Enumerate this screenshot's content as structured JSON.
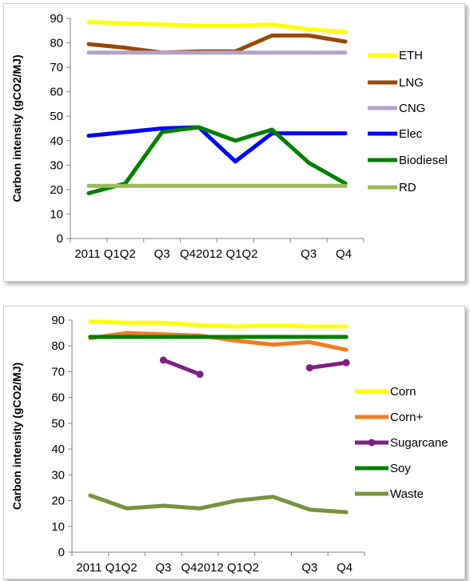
{
  "chart_data": [
    {
      "type": "line",
      "title": "",
      "xlabel": "",
      "ylabel": "Carbon intensity (gCO2/MJ)",
      "ylim": [
        0,
        90
      ],
      "yticks": [
        0,
        10,
        20,
        30,
        40,
        50,
        60,
        70,
        80,
        90
      ],
      "categories": [
        "2011 Q1",
        "Q2",
        "Q3",
        "Q4",
        "2012 Q1",
        "Q2",
        "Q3",
        "Q4"
      ],
      "category_tick_labels": [
        "2011 Q1Q2",
        "Q3",
        "Q42012 Q1Q2",
        "Q3",
        "Q4"
      ],
      "grid": false,
      "legend_position": "right",
      "series": [
        {
          "name": "ETH",
          "color": "#ffff00",
          "values": [
            88.5,
            88,
            87.5,
            87,
            87,
            87.5,
            85.5,
            84.5
          ]
        },
        {
          "name": "LNG",
          "color": "#984807",
          "values": [
            79.5,
            78,
            76,
            76.5,
            76.5,
            83,
            83,
            80.5
          ]
        },
        {
          "name": "CNG",
          "color": "#b3a2c7",
          "values": [
            76,
            76,
            76,
            76,
            76,
            76,
            76,
            76
          ]
        },
        {
          "name": "Elec",
          "color": "#0000ff",
          "values": [
            42,
            43.5,
            45,
            45.5,
            31.5,
            43,
            43,
            43
          ]
        },
        {
          "name": "Biodiesel",
          "color": "#008000",
          "values": [
            18.5,
            22.5,
            43.5,
            45.5,
            40,
            44.5,
            31,
            22.5
          ]
        },
        {
          "name": "RD",
          "color": "#9bbb59",
          "values": [
            21.5,
            21.5,
            21.5,
            21.5,
            21.5,
            21.5,
            21.5,
            21.5
          ]
        }
      ]
    },
    {
      "type": "line",
      "title": "",
      "xlabel": "",
      "ylabel": "Carbon intensity (gCO2/MJ)",
      "ylim": [
        0,
        90
      ],
      "yticks": [
        0,
        10,
        20,
        30,
        40,
        50,
        60,
        70,
        80,
        90
      ],
      "categories": [
        "2011 Q1",
        "Q2",
        "Q3",
        "Q4",
        "2012 Q1",
        "Q2",
        "Q3",
        "Q4"
      ],
      "category_tick_labels": [
        "2011 Q1Q2",
        "Q3",
        "Q42012 Q1Q2",
        "Q3",
        "Q4"
      ],
      "grid": false,
      "legend_position": "right",
      "series": [
        {
          "name": "Corn",
          "color": "#ffff00",
          "values": [
            89.5,
            89,
            89,
            88,
            87.5,
            88,
            87.5,
            87.5
          ]
        },
        {
          "name": "Corn+",
          "color": "#f47b20",
          "values": [
            83,
            85,
            84.5,
            84,
            82,
            80.5,
            81.5,
            78.5
          ]
        },
        {
          "name": "Sugarcane",
          "color": "#7f1f7f",
          "values": [
            null,
            null,
            74.5,
            69,
            null,
            null,
            71.5,
            73.5
          ],
          "markers": true
        },
        {
          "name": "Soy",
          "color": "#008000",
          "values": [
            83.5,
            83.5,
            83.5,
            83.5,
            83.5,
            83.5,
            83.5,
            83.5
          ]
        },
        {
          "name": "Waste",
          "color": "#77933c",
          "values": [
            22,
            17,
            18,
            17,
            20,
            21.5,
            16.5,
            15.5
          ]
        }
      ]
    }
  ]
}
